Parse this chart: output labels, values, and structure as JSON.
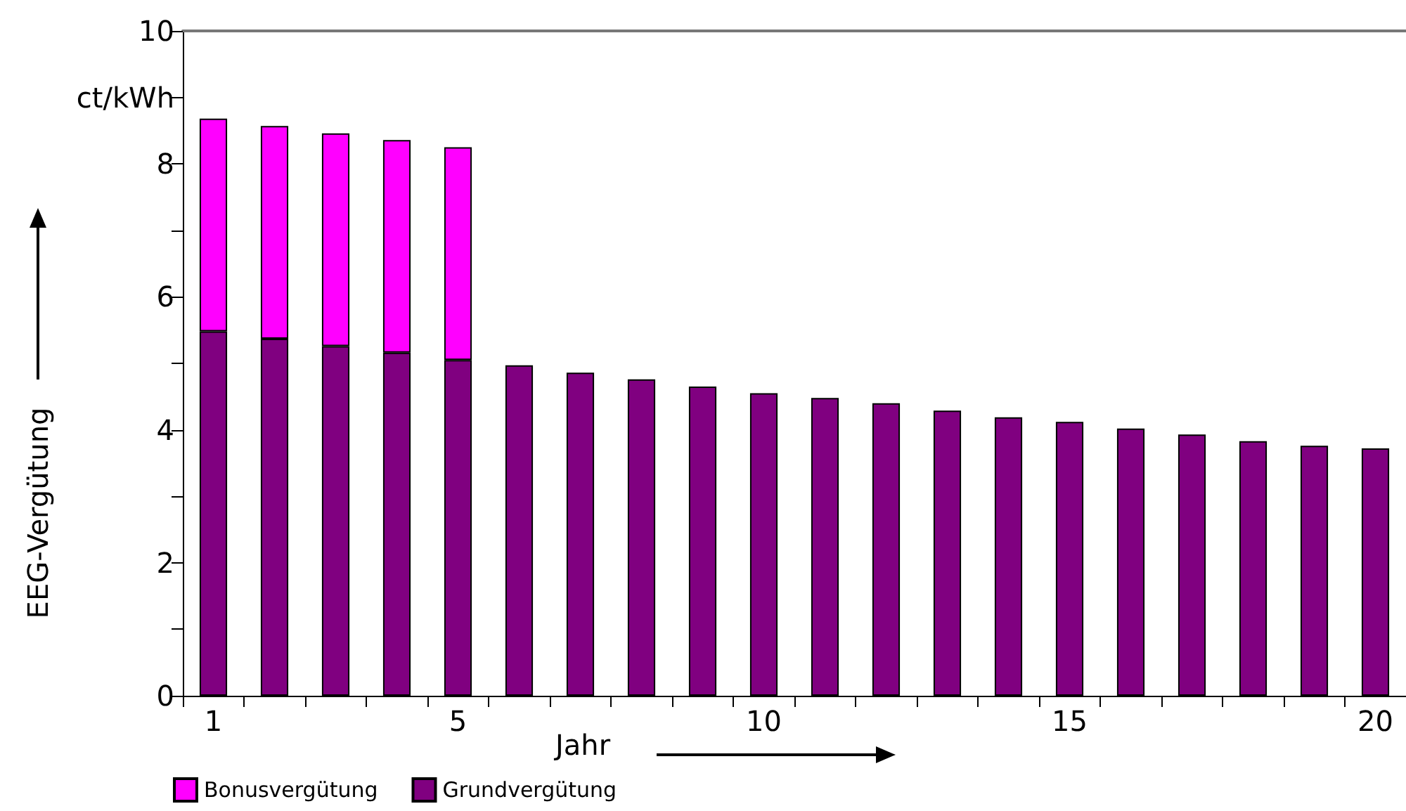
{
  "chart_data": {
    "type": "bar",
    "xlabel": "Jahr",
    "ylabel": "EEG-Vergütung",
    "categories": [
      "1",
      null,
      null,
      null,
      "5",
      null,
      null,
      null,
      null,
      "10",
      null,
      null,
      null,
      null,
      "15",
      null,
      null,
      null,
      null,
      "20"
    ],
    "series": [
      {
        "name": "Grundvergütung",
        "color": "#800080",
        "values": [
          5.48,
          5.37,
          5.26,
          5.16,
          5.05,
          4.97,
          4.86,
          4.76,
          4.65,
          4.55,
          4.48,
          4.4,
          4.29,
          4.19,
          4.12,
          4.02,
          3.93,
          3.83,
          3.76,
          3.72
        ]
      },
      {
        "name": "Bonusvergütung",
        "color": "#ff00ff",
        "values": [
          3.2,
          3.2,
          3.2,
          3.2,
          3.2,
          null,
          null,
          null,
          null,
          null,
          null,
          null,
          null,
          null,
          null,
          null,
          null,
          null,
          null,
          null
        ]
      }
    ],
    "stacked": true,
    "ylim": [
      0,
      10
    ],
    "yticks": [
      0,
      {
        "value": 1,
        "label": null
      },
      2,
      {
        "value": 3,
        "label": null
      },
      4,
      {
        "value": 5,
        "label": null
      },
      6,
      {
        "value": 7,
        "label": null
      },
      8,
      {
        "value": 9,
        "label": "ct/kWh"
      },
      10
    ],
    "grid": false,
    "legend": "bottom left"
  }
}
